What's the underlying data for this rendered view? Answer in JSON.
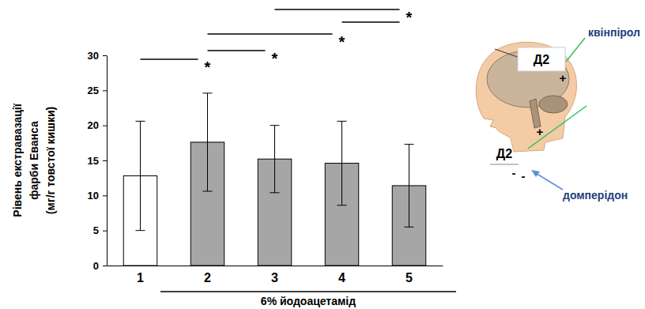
{
  "chart_data": {
    "type": "bar",
    "categories": [
      "1",
      "2",
      "3",
      "4",
      "5"
    ],
    "values": [
      12.8,
      17.6,
      15.2,
      14.6,
      11.4
    ],
    "errors": [
      7.8,
      7.0,
      4.8,
      6.0,
      5.9
    ],
    "colors": [
      "#ffffff",
      "#a6a6a6",
      "#a6a6a6",
      "#a6a6a6",
      "#a6a6a6"
    ],
    "y_label": [
      "Рівень екстравазації",
      "фарби Еванса",
      "(мг/г товстої кишки)"
    ],
    "ylim": [
      0,
      30
    ],
    "yticks": [
      0,
      5,
      10,
      15,
      20,
      25,
      30
    ],
    "grid": false,
    "comparisons": [
      {
        "from": "1",
        "to": "2",
        "label": "*"
      },
      {
        "from": "2",
        "to": "3",
        "label": "*"
      },
      {
        "from": "2",
        "to": "4",
        "label": "*"
      },
      {
        "from": "4",
        "to": "5"
      },
      {
        "from": "3",
        "to": "5",
        "label": "*"
      }
    ],
    "group_label": {
      "text": "6% йодоацетамід",
      "from": "2",
      "to": "5"
    },
    "diagram": {
      "receptors": [
        "Д2",
        "Д2"
      ],
      "agonist": "квінпірол",
      "antagonist": "домперідон",
      "signs": [
        "+",
        "+",
        "-",
        "-"
      ]
    }
  }
}
